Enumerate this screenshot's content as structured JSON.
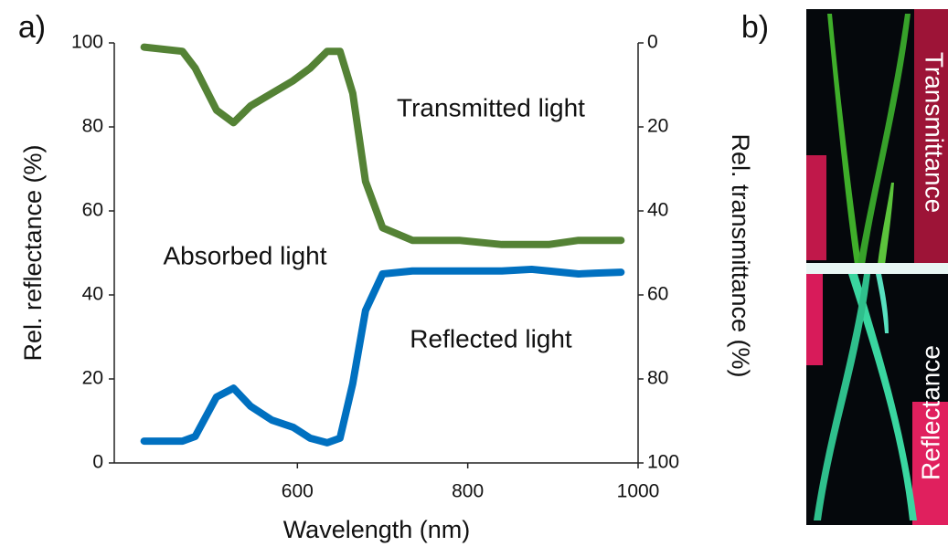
{
  "chart_data": {
    "type": "line",
    "panel_label": "a)",
    "x_label": "Wavelength (nm)",
    "y_label": "Rel. reflectance (%)",
    "y2_label": "Rel. transmittance (%)",
    "x": [
      420,
      465,
      480,
      505,
      525,
      545,
      570,
      595,
      615,
      635,
      650,
      665,
      680,
      700,
      735,
      790,
      840,
      875,
      895,
      930,
      950,
      980
    ],
    "series": [
      {
        "color": "#548235",
        "axis": "y2",
        "values": [
          1,
          2,
          6,
          16,
          19,
          15,
          12,
          9,
          6,
          2,
          2,
          12,
          33,
          44,
          47,
          47,
          48,
          48,
          48,
          47,
          47,
          47
        ]
      },
      {
        "color": "#0070c0",
        "values": [
          5.2,
          5.2,
          6.3,
          15.7,
          17.8,
          13.5,
          10.2,
          8.5,
          5.9,
          4.8,
          5.9,
          18.9,
          36.3,
          45,
          45.7,
          45.7,
          45.7,
          46.1,
          45.7,
          45,
          45.2,
          45.4
        ]
      }
    ],
    "xlim": [
      385,
      1000
    ],
    "xticks": [
      600,
      800,
      1000
    ],
    "ylim": [
      0,
      100
    ],
    "yticks": [
      0,
      20,
      40,
      60,
      80,
      100
    ],
    "y2lim": [
      100,
      0
    ],
    "y2ticks": [
      0,
      20,
      40,
      60,
      80,
      100
    ],
    "annotations": [
      "Transmitted light",
      "Absorbed light",
      "Reflected light"
    ]
  },
  "panel_b": {
    "label": "b)",
    "top_label": "Transmittance",
    "bottom_label": "Reflectance"
  }
}
